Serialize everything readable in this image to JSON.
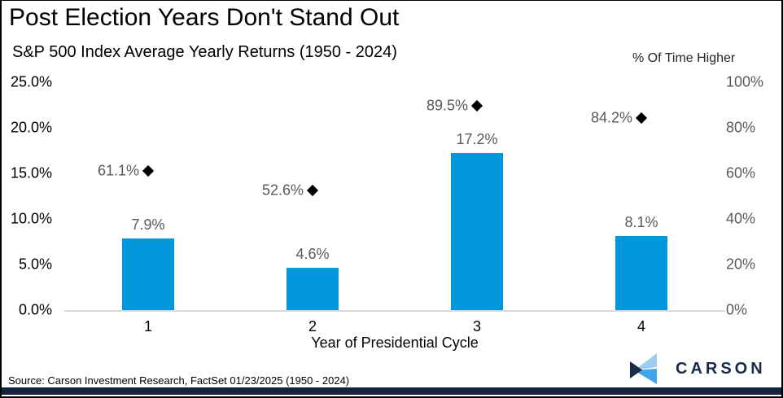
{
  "header": {
    "title": "Post Election Years Don't Stand Out",
    "subtitle": "S&P 500 Index Average Yearly Returns (1950 - 2024)"
  },
  "chart_data": {
    "type": "bar",
    "title": "Post Election Years Don't Stand Out",
    "subtitle": "S&P 500 Index Average Yearly Returns (1950 - 2024)",
    "categories": [
      "1",
      "2",
      "3",
      "4"
    ],
    "xlabel": "Year of Presidential Cycle",
    "series": [
      {
        "name": "Average Yearly Return",
        "type": "bar",
        "axis": "left",
        "values": [
          7.9,
          4.6,
          17.2,
          8.1
        ],
        "labels": [
          "7.9%",
          "4.6%",
          "17.2%",
          "8.1%"
        ]
      },
      {
        "name": "% Of Time Higher",
        "type": "scatter-diamond",
        "axis": "right",
        "values": [
          61.1,
          52.6,
          89.5,
          84.2
        ],
        "labels": [
          "61.1%",
          "52.6%",
          "89.5%",
          "84.2%"
        ]
      }
    ],
    "left_axis": {
      "min": 0,
      "max": 25,
      "ticks": [
        "25.0%",
        "20.0%",
        "15.0%",
        "10.0%",
        "5.0%",
        "0.0%"
      ]
    },
    "right_axis": {
      "min": 0,
      "max": 100,
      "label": "% Of Time Higher",
      "ticks": [
        "100%",
        "80%",
        "60%",
        "40%",
        "20%",
        "0%"
      ]
    },
    "grid": "off",
    "colors": {
      "bar": "#0098DB",
      "diamond_marker": "#000000",
      "data_label_gray": "#595959",
      "axis_line": "#D9D9D9",
      "brand_navy": "#1B2B4A",
      "bottom_accent": "#15233F",
      "logo_light_blue": "#9DCEF1",
      "logo_mid_blue": "#41A5E9"
    }
  },
  "footer": {
    "source": "Source: Carson Investment Research, FactSet 01/23/2025 (1950 - 2024)",
    "logo_text": "CARSON"
  }
}
